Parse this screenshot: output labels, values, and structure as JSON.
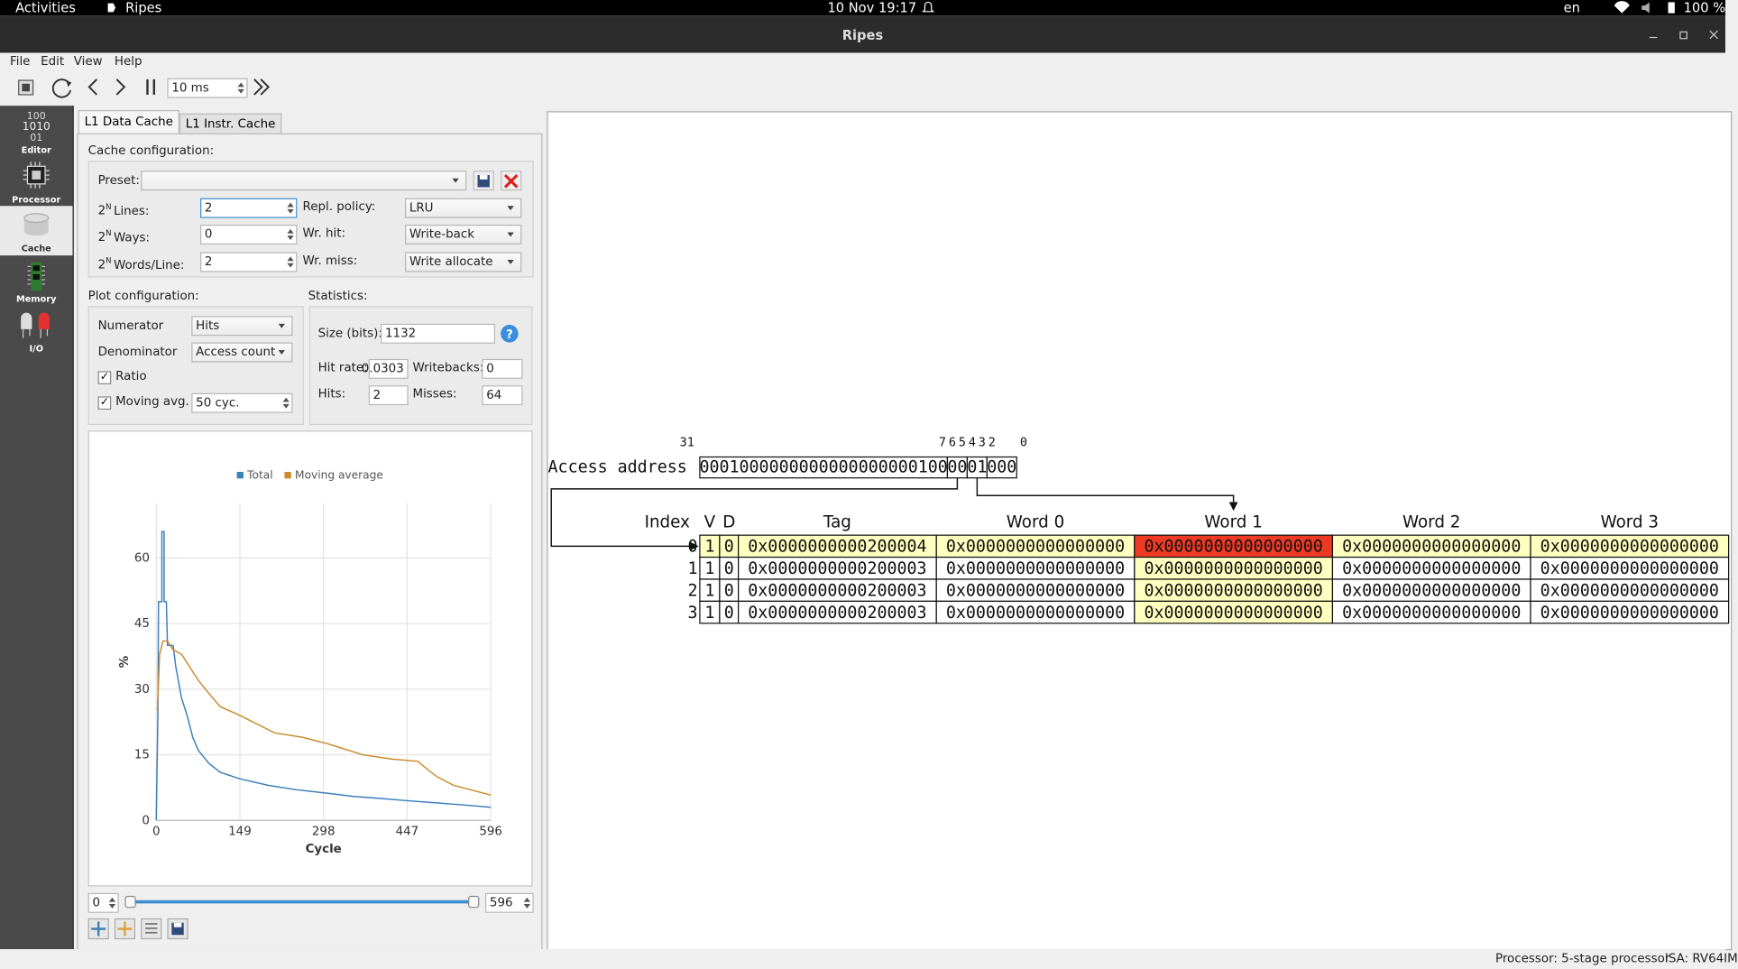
{
  "topbar": {
    "activities": "Activities",
    "app": "Ripes",
    "clock": "10 Nov 19:17",
    "language": "en",
    "battery": "100 %"
  },
  "window": {
    "title": "Ripes"
  },
  "menu": [
    "File",
    "Edit",
    "View",
    "Help"
  ],
  "toolbar": {
    "delay": "10 ms"
  },
  "sidebar": [
    "Editor",
    "Processor",
    "Cache",
    "Memory",
    "I/O"
  ],
  "tabs": [
    "L1 Data Cache",
    "L1 Instr. Cache"
  ],
  "cache_config": {
    "heading": "Cache configuration:",
    "preset_label": "Preset:",
    "size_fields": [
      {
        "base": "2",
        "sup": "N",
        "label": "Lines:",
        "value": 2
      },
      {
        "base": "2",
        "sup": "N",
        "label": "Ways:",
        "value": 0
      },
      {
        "base": "2",
        "sup": "N",
        "label": "Words/Line:",
        "value": 2
      }
    ],
    "policy_fields": [
      {
        "label": "Repl. policy:",
        "value": "LRU"
      },
      {
        "label": "Wr. hit:",
        "value": "Write-back"
      },
      {
        "label": "Wr. miss:",
        "value": "Write allocate"
      }
    ]
  },
  "plot_config": {
    "heading": "Plot configuration:",
    "numerator_label": "Numerator",
    "numerator": "Hits",
    "denominator_label": "Denominator",
    "denominator": "Access count",
    "ratio_label": "Ratio",
    "moving_avg_label": "Moving avg.",
    "moving_avg": "50 cyc."
  },
  "statistics": {
    "heading": "Statistics:",
    "size_label": "Size (bits):",
    "size": 1132,
    "hit_rate_label": "Hit rate:",
    "hit_rate": 0.0303,
    "writebacks_label": "Writebacks:",
    "writebacks": 0,
    "hits_label": "Hits:",
    "hits": 2,
    "misses_label": "Misses:",
    "misses": 64
  },
  "chart_data": {
    "type": "line",
    "xlabel": "Cycle",
    "ylabel": "%",
    "xlim": [
      0,
      596
    ],
    "xticks": [
      0,
      149,
      298,
      447,
      596
    ],
    "ylim": [
      0,
      72.5
    ],
    "yticks": [
      0,
      15,
      30,
      45,
      60
    ],
    "grid": true,
    "legend": "top",
    "series": [
      {
        "name": "Total",
        "color": "#3b7fb8",
        "x": [
          0,
          3,
          4,
          10,
          10,
          14,
          14,
          18,
          20,
          30,
          35,
          45,
          55,
          65,
          75,
          94,
          114,
          149,
          200,
          250,
          306,
          350,
          400,
          447,
          500,
          550,
          596
        ],
        "values": [
          0,
          25,
          50,
          50,
          66,
          66,
          50,
          50,
          40,
          40,
          35,
          28,
          24,
          19,
          16,
          13,
          11,
          9.5,
          8,
          7,
          6.2,
          5.5,
          5,
          4.5,
          4,
          3.5,
          3
        ]
      },
      {
        "name": "Moving average",
        "color": "#c98a2c",
        "x": [
          2,
          6,
          12,
          20,
          30,
          45,
          55,
          75,
          94,
          114,
          149,
          180,
          211,
          260,
          306,
          368,
          420,
          466,
          480,
          500,
          530,
          560,
          596
        ],
        "values": [
          25,
          38,
          41,
          41,
          39,
          38,
          36,
          32,
          29,
          26,
          24,
          22,
          20,
          19,
          17.5,
          15,
          14,
          13.5,
          12,
          10,
          8,
          7,
          5.8
        ]
      }
    ]
  },
  "range": {
    "from": 0,
    "to": 596
  },
  "cache_view": {
    "address_label": "Access address",
    "bit_labels": [
      31,
      7,
      6,
      5,
      4,
      3,
      2,
      0
    ],
    "address_fields": [
      "0001000000000000000000100",
      "00",
      "01",
      "000"
    ],
    "headers": [
      "Index",
      "V",
      "D",
      "Tag",
      "Word 0",
      "Word 1",
      "Word 2",
      "Word 3"
    ],
    "highlight_color": "#ffffbf",
    "hit_color": "#ee3a24",
    "rows": [
      [
        0,
        1,
        0,
        "0x0000000000200004",
        "0x0000000000000000",
        "0x0000000000000000",
        "0x0000000000000000",
        "0x0000000000000000"
      ],
      [
        1,
        1,
        0,
        "0x0000000000200003",
        "0x0000000000000000",
        "0x0000000000000000",
        "0x0000000000000000",
        "0x0000000000000000"
      ],
      [
        2,
        1,
        0,
        "0x0000000000200003",
        "0x0000000000000000",
        "0x0000000000000000",
        "0x0000000000000000",
        "0x0000000000000000"
      ],
      [
        3,
        1,
        0,
        "0x0000000000200003",
        "0x0000000000000000",
        "0x0000000000000000",
        "0x0000000000000000",
        "0x0000000000000000"
      ]
    ]
  },
  "statusbar": {
    "processor": "Processor: 5-stage processor",
    "isa": "ISA: RV64IM"
  }
}
